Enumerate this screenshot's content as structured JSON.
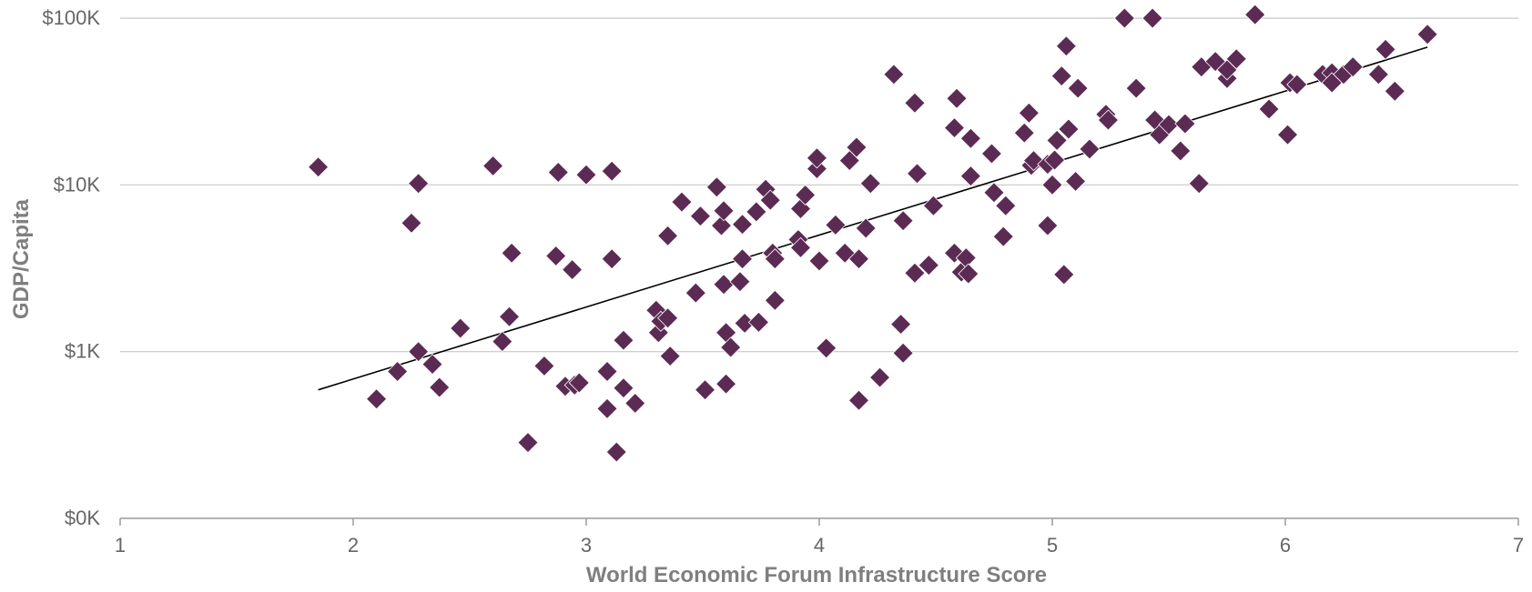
{
  "chart_data": {
    "type": "scatter",
    "title": "",
    "xlabel": "World Economic Forum Infrastructure Score",
    "ylabel": "GDP/Capita",
    "xlim": [
      1,
      7
    ],
    "xticks": [
      1,
      2,
      3,
      4,
      5,
      6,
      7
    ],
    "xtick_labels": [
      "1",
      "2",
      "3",
      "4",
      "5",
      "6",
      "7"
    ],
    "y_scale": "log",
    "ylim": [
      100,
      100000
    ],
    "yticks": [
      100,
      1000,
      10000,
      100000
    ],
    "ytick_labels": [
      "$0K",
      "$1K",
      "$10K",
      "$100K"
    ],
    "grid": "horizontal",
    "marker": "diamond",
    "point_color": "#5c2b54",
    "trend_color": "#000000",
    "trendline": {
      "type": "log-linear",
      "x": [
        1.85,
        6.61
      ],
      "y": [
        590,
        67000
      ]
    },
    "points": [
      {
        "x": 1.85,
        "y": 12800
      },
      {
        "x": 2.1,
        "y": 520
      },
      {
        "x": 2.19,
        "y": 760
      },
      {
        "x": 2.25,
        "y": 5900
      },
      {
        "x": 2.28,
        "y": 10200
      },
      {
        "x": 2.28,
        "y": 1000
      },
      {
        "x": 2.34,
        "y": 840
      },
      {
        "x": 2.37,
        "y": 610
      },
      {
        "x": 2.46,
        "y": 1380
      },
      {
        "x": 2.6,
        "y": 13000
      },
      {
        "x": 2.64,
        "y": 1150
      },
      {
        "x": 2.67,
        "y": 1620
      },
      {
        "x": 2.68,
        "y": 3900
      },
      {
        "x": 2.75,
        "y": 285
      },
      {
        "x": 2.82,
        "y": 820
      },
      {
        "x": 2.87,
        "y": 3750
      },
      {
        "x": 2.88,
        "y": 11900
      },
      {
        "x": 2.91,
        "y": 620
      },
      {
        "x": 2.94,
        "y": 3100
      },
      {
        "x": 2.95,
        "y": 630
      },
      {
        "x": 2.97,
        "y": 650
      },
      {
        "x": 3.0,
        "y": 11500
      },
      {
        "x": 3.09,
        "y": 760
      },
      {
        "x": 3.09,
        "y": 455
      },
      {
        "x": 3.11,
        "y": 12100
      },
      {
        "x": 3.11,
        "y": 3600
      },
      {
        "x": 3.13,
        "y": 250
      },
      {
        "x": 3.16,
        "y": 605
      },
      {
        "x": 3.16,
        "y": 1170
      },
      {
        "x": 3.21,
        "y": 490
      },
      {
        "x": 3.3,
        "y": 1770
      },
      {
        "x": 3.31,
        "y": 1300
      },
      {
        "x": 3.32,
        "y": 1520
      },
      {
        "x": 3.35,
        "y": 1590
      },
      {
        "x": 3.35,
        "y": 4950
      },
      {
        "x": 3.36,
        "y": 940
      },
      {
        "x": 3.41,
        "y": 7900
      },
      {
        "x": 3.47,
        "y": 2250
      },
      {
        "x": 3.49,
        "y": 6500
      },
      {
        "x": 3.51,
        "y": 590
      },
      {
        "x": 3.56,
        "y": 9700
      },
      {
        "x": 3.58,
        "y": 5700
      },
      {
        "x": 3.59,
        "y": 7000
      },
      {
        "x": 3.59,
        "y": 2530
      },
      {
        "x": 3.6,
        "y": 640
      },
      {
        "x": 3.6,
        "y": 1300
      },
      {
        "x": 3.62,
        "y": 1060
      },
      {
        "x": 3.66,
        "y": 2630
      },
      {
        "x": 3.67,
        "y": 3600
      },
      {
        "x": 3.67,
        "y": 5800
      },
      {
        "x": 3.68,
        "y": 1480
      },
      {
        "x": 3.73,
        "y": 6900
      },
      {
        "x": 3.74,
        "y": 1500
      },
      {
        "x": 3.77,
        "y": 9400
      },
      {
        "x": 3.79,
        "y": 8100
      },
      {
        "x": 3.8,
        "y": 3900
      },
      {
        "x": 3.81,
        "y": 2030
      },
      {
        "x": 3.81,
        "y": 3600
      },
      {
        "x": 3.91,
        "y": 4700
      },
      {
        "x": 3.92,
        "y": 4200
      },
      {
        "x": 3.92,
        "y": 7200
      },
      {
        "x": 3.94,
        "y": 8700
      },
      {
        "x": 3.99,
        "y": 12500
      },
      {
        "x": 3.99,
        "y": 14500
      },
      {
        "x": 4.0,
        "y": 3500
      },
      {
        "x": 4.03,
        "y": 1050
      },
      {
        "x": 4.07,
        "y": 5750
      },
      {
        "x": 4.11,
        "y": 3900
      },
      {
        "x": 4.13,
        "y": 14000
      },
      {
        "x": 4.16,
        "y": 16800
      },
      {
        "x": 4.17,
        "y": 3600
      },
      {
        "x": 4.17,
        "y": 510
      },
      {
        "x": 4.2,
        "y": 5500
      },
      {
        "x": 4.22,
        "y": 10200
      },
      {
        "x": 4.26,
        "y": 700
      },
      {
        "x": 4.32,
        "y": 46000
      },
      {
        "x": 4.35,
        "y": 1460
      },
      {
        "x": 4.36,
        "y": 980
      },
      {
        "x": 4.36,
        "y": 6100
      },
      {
        "x": 4.41,
        "y": 31000
      },
      {
        "x": 4.41,
        "y": 2960
      },
      {
        "x": 4.42,
        "y": 11700
      },
      {
        "x": 4.47,
        "y": 3300
      },
      {
        "x": 4.49,
        "y": 7500
      },
      {
        "x": 4.58,
        "y": 3900
      },
      {
        "x": 4.58,
        "y": 22000
      },
      {
        "x": 4.59,
        "y": 33000
      },
      {
        "x": 4.61,
        "y": 3000
      },
      {
        "x": 4.63,
        "y": 3650
      },
      {
        "x": 4.64,
        "y": 2930
      },
      {
        "x": 4.65,
        "y": 19000
      },
      {
        "x": 4.65,
        "y": 11300
      },
      {
        "x": 4.74,
        "y": 15400
      },
      {
        "x": 4.75,
        "y": 9000
      },
      {
        "x": 4.79,
        "y": 4900
      },
      {
        "x": 4.8,
        "y": 7500
      },
      {
        "x": 4.88,
        "y": 20500
      },
      {
        "x": 4.9,
        "y": 27000
      },
      {
        "x": 4.91,
        "y": 13100
      },
      {
        "x": 4.92,
        "y": 14000
      },
      {
        "x": 4.98,
        "y": 13300
      },
      {
        "x": 4.98,
        "y": 5700
      },
      {
        "x": 5.0,
        "y": 10000
      },
      {
        "x": 5.01,
        "y": 14100
      },
      {
        "x": 5.02,
        "y": 18500
      },
      {
        "x": 5.04,
        "y": 45000
      },
      {
        "x": 5.05,
        "y": 2900
      },
      {
        "x": 5.06,
        "y": 68000
      },
      {
        "x": 5.07,
        "y": 21600
      },
      {
        "x": 5.1,
        "y": 10500
      },
      {
        "x": 5.11,
        "y": 38000
      },
      {
        "x": 5.16,
        "y": 16400
      },
      {
        "x": 5.23,
        "y": 26500
      },
      {
        "x": 5.24,
        "y": 24500
      },
      {
        "x": 5.31,
        "y": 100000
      },
      {
        "x": 5.36,
        "y": 38000
      },
      {
        "x": 5.43,
        "y": 100000
      },
      {
        "x": 5.44,
        "y": 24500
      },
      {
        "x": 5.46,
        "y": 20000
      },
      {
        "x": 5.5,
        "y": 23000
      },
      {
        "x": 5.55,
        "y": 16000
      },
      {
        "x": 5.57,
        "y": 23300
      },
      {
        "x": 5.63,
        "y": 10200
      },
      {
        "x": 5.64,
        "y": 51000
      },
      {
        "x": 5.7,
        "y": 55000
      },
      {
        "x": 5.75,
        "y": 43500
      },
      {
        "x": 5.75,
        "y": 49000
      },
      {
        "x": 5.79,
        "y": 57000
      },
      {
        "x": 5.87,
        "y": 105000
      },
      {
        "x": 5.93,
        "y": 28500
      },
      {
        "x": 6.01,
        "y": 20000
      },
      {
        "x": 6.02,
        "y": 41000
      },
      {
        "x": 6.05,
        "y": 40000
      },
      {
        "x": 6.16,
        "y": 46000
      },
      {
        "x": 6.2,
        "y": 47000
      },
      {
        "x": 6.2,
        "y": 41000
      },
      {
        "x": 6.25,
        "y": 46000
      },
      {
        "x": 6.29,
        "y": 51000
      },
      {
        "x": 6.4,
        "y": 46000
      },
      {
        "x": 6.43,
        "y": 65000
      },
      {
        "x": 6.47,
        "y": 36500
      },
      {
        "x": 6.61,
        "y": 80000
      }
    ]
  }
}
